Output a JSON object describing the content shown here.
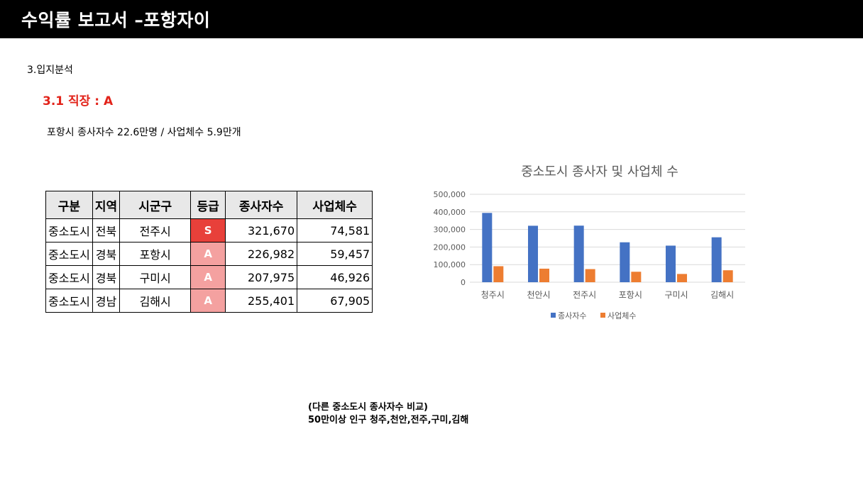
{
  "header": {
    "title": "수익률 보고서 –포항자이"
  },
  "section": {
    "title": "3.입지분석"
  },
  "subsection": {
    "title": "3.1 직장 : A"
  },
  "summary": {
    "text": "포항시 종사자수 22.6만명 / 사업체수 5.9만개"
  },
  "table": {
    "headers": [
      "구분",
      "지역",
      "시군구",
      "등급",
      "종사자수",
      "사업체수"
    ],
    "rows": [
      {
        "type": "중소도시",
        "region": "전북",
        "city": "전주시",
        "grade": "S",
        "workers": "321,670",
        "businesses": "74,581"
      },
      {
        "type": "중소도시",
        "region": "경북",
        "city": "포항시",
        "grade": "A",
        "workers": "226,982",
        "businesses": "59,457"
      },
      {
        "type": "중소도시",
        "region": "경북",
        "city": "구미시",
        "grade": "A",
        "workers": "207,975",
        "businesses": "46,926"
      },
      {
        "type": "중소도시",
        "region": "경남",
        "city": "김해시",
        "grade": "A",
        "workers": "255,401",
        "businesses": "67,905"
      }
    ],
    "grade_colors": {
      "S": "#e8403a",
      "A": "#f4a1a0"
    }
  },
  "chart_data": {
    "type": "bar",
    "title": "중소도시 종사자 및 사업체 수",
    "categories": [
      "청주시",
      "천안시",
      "전주시",
      "포항시",
      "구미시",
      "김해시"
    ],
    "series": [
      {
        "name": "종사자수",
        "color": "#4472c4",
        "values": [
          394000,
          321000,
          321670,
          226982,
          207975,
          255401
        ]
      },
      {
        "name": "사업체수",
        "color": "#ed7d31",
        "values": [
          91000,
          77000,
          74581,
          59457,
          46926,
          67905
        ]
      }
    ],
    "ylim": [
      0,
      500000
    ],
    "yticks": [
      0,
      100000,
      200000,
      300000,
      400000,
      500000
    ],
    "ytick_labels": [
      "0",
      "100,000",
      "200,000",
      "300,000",
      "400,000",
      "500,000"
    ],
    "grid": true,
    "legend": "bottom"
  },
  "note": {
    "line1": "(다른 중소도시 종사자수 비교)",
    "line2": "50만이상 인구 청주,천안,전주,구미,김해"
  }
}
